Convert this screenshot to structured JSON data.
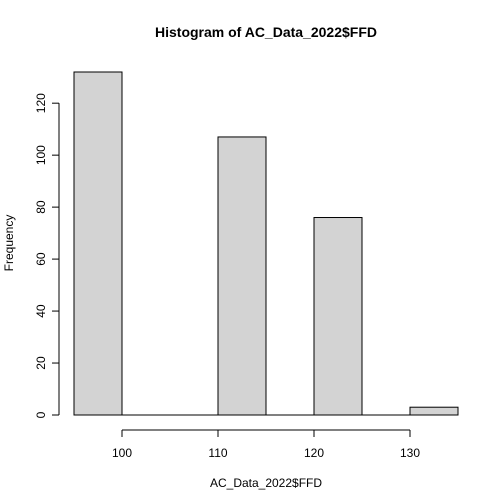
{
  "chart_data": {
    "type": "bar",
    "title": "Histogram of AC_Data_2022$FFD",
    "xlabel": "AC_Data_2022$FFD",
    "ylabel": "Frequency",
    "bins": [
      {
        "x0": 95,
        "x1": 100,
        "count": 132
      },
      {
        "x0": 100,
        "x1": 105,
        "count": 0
      },
      {
        "x0": 105,
        "x1": 110,
        "count": 0
      },
      {
        "x0": 110,
        "x1": 115,
        "count": 107
      },
      {
        "x0": 115,
        "x1": 120,
        "count": 0
      },
      {
        "x0": 120,
        "x1": 125,
        "count": 76
      },
      {
        "x0": 125,
        "x1": 130,
        "count": 0
      },
      {
        "x0": 130,
        "x1": 135,
        "count": 3
      }
    ],
    "xlim": [
      95,
      135
    ],
    "ylim": [
      0,
      132
    ],
    "x_ticks": [
      100,
      110,
      120,
      130
    ],
    "y_ticks": [
      0,
      20,
      40,
      60,
      80,
      100,
      120
    ],
    "bar_fill": "#d3d3d3",
    "bar_stroke": "#000000",
    "grid": false,
    "legend": "none"
  }
}
